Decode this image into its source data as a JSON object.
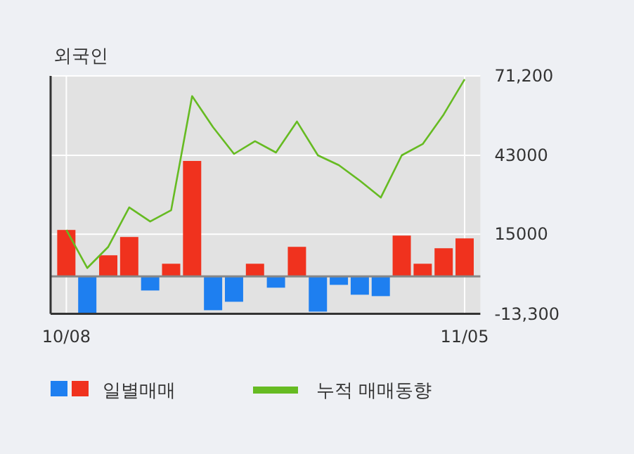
{
  "chart_data": {
    "type": "bar",
    "title": "외국인",
    "categories": [
      "10/08",
      null,
      null,
      null,
      null,
      null,
      null,
      null,
      null,
      null,
      null,
      null,
      null,
      null,
      null,
      null,
      null,
      null,
      null,
      "11/05"
    ],
    "series": [
      {
        "name": "일별매매",
        "colors": [
          "#f0321e",
          "#1e7ff0",
          "#f0321e",
          "#f0321e",
          "#1e7ff0",
          "#f0321e",
          "#f0321e",
          "#1e7ff0",
          "#1e7ff0",
          "#f0321e",
          "#1e7ff0",
          "#f0321e",
          "#1e7ff0",
          "#1e7ff0",
          "#1e7ff0",
          "#1e7ff0",
          "#f0321e",
          "#f0321e",
          "#f0321e",
          "#f0321e"
        ],
        "values": [
          16500,
          -13000,
          7500,
          14000,
          -5000,
          4500,
          41000,
          -12000,
          -9000,
          4500,
          -4000,
          10500,
          -12500,
          -3000,
          -6500,
          -7000,
          14500,
          4500,
          10000,
          13500
        ]
      },
      {
        "name": "누적 매매동향",
        "type": "line",
        "color": "#66bb22",
        "values": [
          16500,
          3000,
          10500,
          24500,
          19500,
          23500,
          64000,
          53000,
          43500,
          48000,
          44000,
          55000,
          43000,
          39500,
          34000,
          28000,
          43000,
          47000,
          57500,
          70000
        ]
      }
    ],
    "ylim": [
      -13300,
      71200
    ],
    "yticks": [
      {
        "value": 71200,
        "label": "71,200"
      },
      43000,
      15000,
      {
        "value": -13300,
        "label": "-13,300"
      }
    ],
    "grid": true,
    "legend": "bottom"
  }
}
